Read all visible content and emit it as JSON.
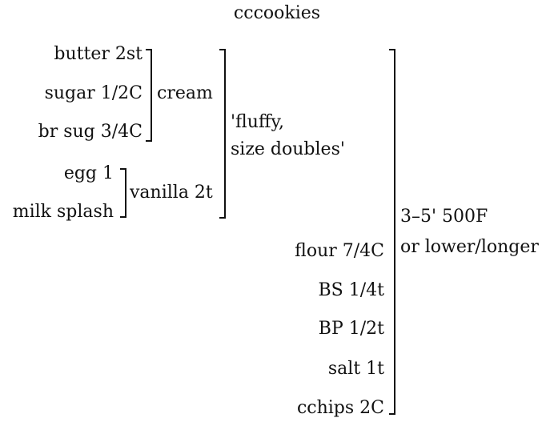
{
  "title": "cccookies",
  "wet_ingredients": {
    "group1": [
      "butter 2st",
      "sugar 1/2C",
      "br sug 3/4C"
    ],
    "group1_action": "cream",
    "group2": [
      "egg 1",
      "milk splash"
    ],
    "group2_action": "vanilla 2t"
  },
  "mix_result": [
    "'fluffy,",
    "size doubles'"
  ],
  "dry_ingredients": [
    "flour 7/4C",
    "BS 1/4t",
    "BP 1/2t",
    "salt 1t",
    "cchips 2C"
  ],
  "bake": [
    "3–5' 500F",
    "or lower/longer"
  ]
}
